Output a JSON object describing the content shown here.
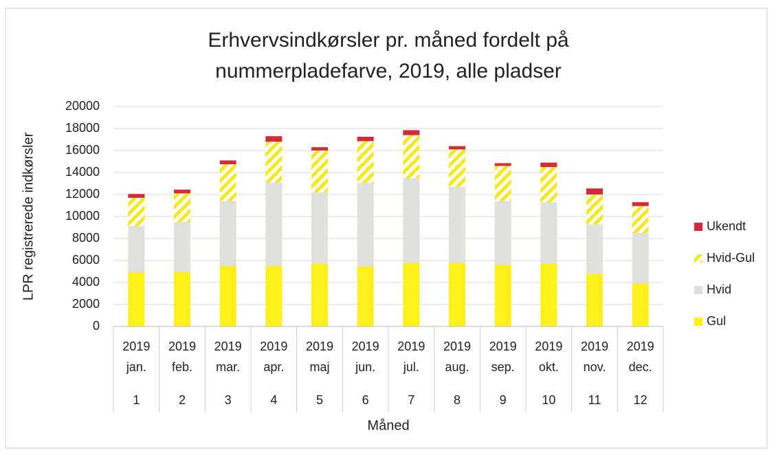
{
  "chart_data": {
    "type": "stacked_bar",
    "title": [
      "Erhvervsindkørsler pr. måned fordelt på",
      "nummerpladefarve, 2019, alle pladser"
    ],
    "ylabel": "LPR registrerede indkørsler",
    "xlabel": "Måned",
    "categories": [
      [
        "2019",
        "jan."
      ],
      [
        "2019",
        "feb."
      ],
      [
        "2019",
        "mar."
      ],
      [
        "2019",
        "apr."
      ],
      [
        "2019",
        "maj"
      ],
      [
        "2019",
        "jun."
      ],
      [
        "2019",
        "jul."
      ],
      [
        "2019",
        "aug."
      ],
      [
        "2019",
        "sep."
      ],
      [
        "2019",
        "okt."
      ],
      [
        "2019",
        "nov."
      ],
      [
        "2019",
        "dec."
      ]
    ],
    "category_groups": [
      "1",
      "2",
      "3",
      "4",
      "5",
      "6",
      "7",
      "8",
      "9",
      "10",
      "11",
      "12"
    ],
    "series": [
      {
        "name": "Gul",
        "color": "#ffef1a",
        "values": [
          4900,
          4950,
          5500,
          5500,
          5700,
          5450,
          5750,
          5750,
          5600,
          5700,
          4800,
          3900
        ]
      },
      {
        "name": "Hvid",
        "color": "#e0e0dc",
        "values": [
          4250,
          4550,
          5900,
          7600,
          6500,
          7600,
          7750,
          6950,
          5800,
          5600,
          4500,
          4600
        ]
      },
      {
        "name": "Hvid-Gul",
        "color": "#f7e81c",
        "hatch": true,
        "values": [
          2550,
          2600,
          3350,
          3700,
          3800,
          3800,
          3900,
          3400,
          3200,
          3200,
          2700,
          2450
        ]
      },
      {
        "name": "Ukendt",
        "color": "#d42a3a",
        "values": [
          350,
          350,
          350,
          500,
          300,
          400,
          450,
          300,
          250,
          400,
          550,
          350
        ]
      }
    ],
    "ylim": [
      0,
      20000
    ],
    "yticks": [
      0,
      2000,
      4000,
      6000,
      8000,
      10000,
      12000,
      14000,
      16000,
      18000,
      20000
    ],
    "grid": true,
    "legend": "right"
  }
}
